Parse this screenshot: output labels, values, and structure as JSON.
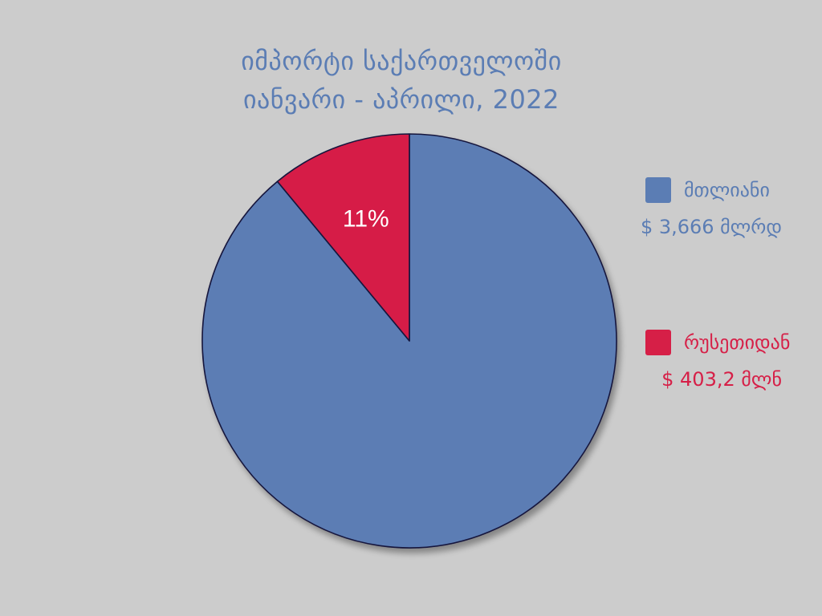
{
  "title": {
    "line1": "იმპორტი საქართველოში",
    "line2": "იანვარი - აპრილი, 2022"
  },
  "colors": {
    "background": "#cccccc",
    "title": "#5b7db4",
    "total": "#5b7db4",
    "russia": "#d61f47",
    "outline": "#14143c",
    "slice_label": "#ffffff"
  },
  "legend": {
    "total": {
      "name": "მთლიანი",
      "value": "$ 3,666 მლრდ"
    },
    "russia": {
      "name": "რუსეთიდან",
      "value": "$ 403,2 მლნ"
    }
  },
  "chart_data": {
    "type": "pie",
    "title": "იმპორტი საქართველოში იანვარი - აპრილი, 2022",
    "slices": [
      {
        "name": "მთლიანი",
        "share": 89,
        "label": "",
        "color": "#5b7db4"
      },
      {
        "name": "რუსეთიდან",
        "share": 11,
        "label": "11%",
        "color": "#d61f47"
      }
    ],
    "start_angle": "12 o'clock",
    "direction": "counter-clockwise for the highlighted slice",
    "legend_position": "right"
  }
}
